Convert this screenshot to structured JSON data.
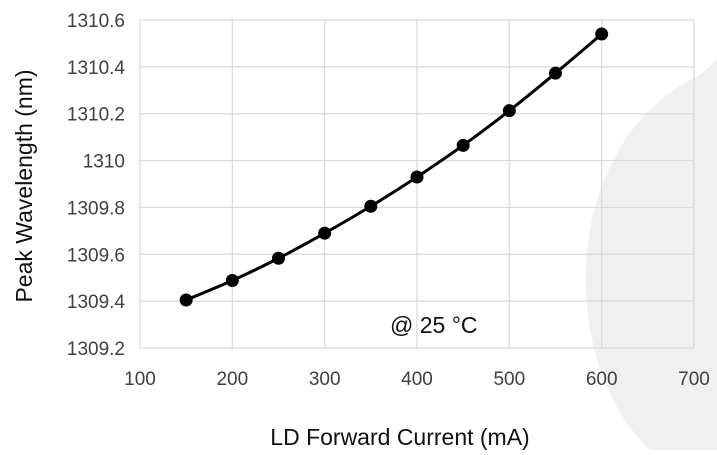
{
  "chart_data": {
    "type": "line",
    "title": "",
    "xlabel": "LD Forward Current (mA)",
    "ylabel": "Peak Wavelength (nm)",
    "xlim": [
      100,
      700
    ],
    "ylim": [
      1309.2,
      1310.6
    ],
    "x_ticks": [
      "100",
      "200",
      "300",
      "400",
      "500",
      "600",
      "700"
    ],
    "y_ticks": [
      "1309.2",
      "1309.4",
      "1309.6",
      "1309.8",
      "1310",
      "1310.2",
      "1310.4",
      "1310.6"
    ],
    "grid": true,
    "legend": "none",
    "annotation": "@ 25 °C",
    "series": [
      {
        "x": [
          150,
          200,
          250,
          300,
          350,
          400,
          450,
          500,
          550,
          600
        ],
        "y": [
          1309.405,
          1309.488,
          1309.583,
          1309.69,
          1309.805,
          1309.93,
          1310.065,
          1310.213,
          1310.373,
          1310.54
        ],
        "color": "#000000"
      }
    ]
  },
  "colors": {
    "background_shape": "#f0f0f0",
    "grid": "#d9d9d9",
    "line": "#000000"
  }
}
